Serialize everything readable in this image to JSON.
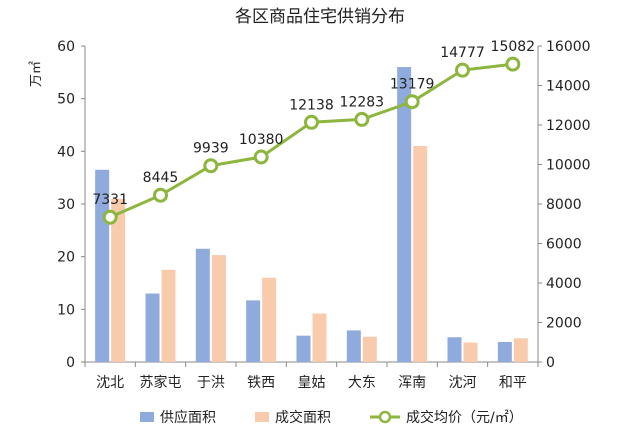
{
  "chart_data": {
    "type": "bar",
    "title": "各区商品住宅供销分布",
    "y_left_label": "万㎡",
    "categories": [
      "沈北",
      "苏家屯",
      "于洪",
      "铁西",
      "皇姑",
      "大东",
      "浑南",
      "沈河",
      "和平"
    ],
    "series": [
      {
        "name": "供应面积",
        "type": "bar",
        "axis": "left",
        "color": "#8faadc",
        "values": [
          36.5,
          13,
          21.5,
          11.7,
          5,
          6,
          56,
          4.7,
          3.8
        ]
      },
      {
        "name": "成交面积",
        "type": "bar",
        "axis": "left",
        "color": "#f8cbad",
        "values": [
          31,
          17.5,
          20.3,
          16,
          9.2,
          4.8,
          41,
          3.7,
          4.5
        ]
      },
      {
        "name": "成交均价（元/㎡）",
        "type": "line",
        "axis": "right",
        "color": "#8db63e",
        "values": [
          7331,
          8445,
          9939,
          10380,
          12138,
          12283,
          13179,
          14777,
          15082
        ]
      }
    ],
    "y_left_range": [
      0,
      60
    ],
    "y_left_ticks": [
      0,
      10,
      20,
      30,
      40,
      50,
      60
    ],
    "y_right_range": [
      0,
      16000
    ],
    "y_right_ticks": [
      0,
      2000,
      4000,
      6000,
      8000,
      10000,
      12000,
      14000,
      16000
    ],
    "grid": false,
    "legend_position": "bottom"
  }
}
